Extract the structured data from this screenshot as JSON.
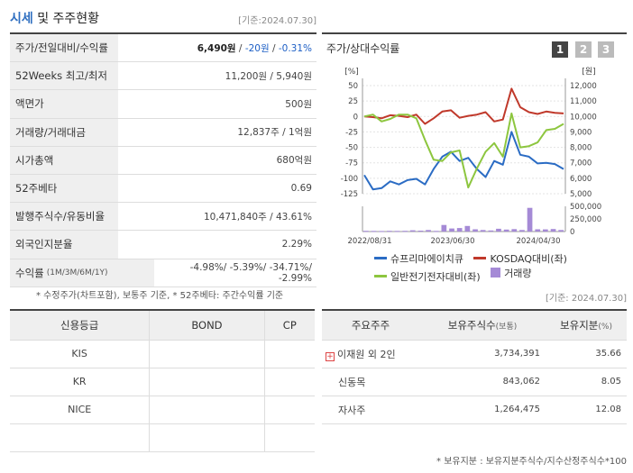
{
  "header": {
    "title_accent": "시세",
    "title_rest": " 및 주주현황",
    "ref_date": "[기준:2024.07.30]"
  },
  "price_rows": [
    {
      "label": "주가/전일대비/수익률",
      "value_main": "6,490원",
      "value_sep1": " / ",
      "value_change": "-20원",
      "value_sep2": " / ",
      "value_pct": "-0.31%"
    },
    {
      "label": "52Weeks 최고/최저",
      "value": "11,200원 / 5,940원"
    },
    {
      "label": "액면가",
      "value": "500원"
    },
    {
      "label": "거래량/거래대금",
      "value": "12,837주 / 1억원"
    },
    {
      "label": "시가총액",
      "value": "680억원"
    },
    {
      "label": "52주베타",
      "value": "0.69"
    },
    {
      "label": "발행주식수/유동비율",
      "value": "10,471,840주 / 43.61%"
    },
    {
      "label": "외국인지분율",
      "value": "2.29%"
    },
    {
      "label": "수익률",
      "label_small": "(1M/3M/6M/1Y)",
      "value": "-4.98%/ -5.39%/ -34.71%/ -2.99%"
    }
  ],
  "price_note": "* 수정주가(차트포함), 보통주 기준, * 52주베타: 주간수익률 기준",
  "chart_panel": {
    "title": "주가/상대수익률",
    "pages": [
      "1",
      "2",
      "3"
    ]
  },
  "chart_data": {
    "type": "line",
    "y_left_unit": "[%]",
    "y_right_unit": "[원]",
    "y_left_ticks": [
      "50",
      "25",
      "0",
      "-25",
      "-50",
      "-75",
      "-100",
      "-125"
    ],
    "y_right_ticks": [
      "12,000",
      "11,000",
      "10,000",
      "9,000",
      "8,000",
      "7,000",
      "6,000",
      "5,000"
    ],
    "vol_ticks": [
      "500,000",
      "250,000",
      "0"
    ],
    "x_labels": [
      "2022/08/31",
      "2023/06/30",
      "2024/04/30"
    ],
    "ylim_left": [
      -125,
      50
    ],
    "ylim_right": [
      5000,
      12000
    ],
    "series": [
      {
        "name": "슈프리마에이치큐",
        "color": "#2b6cc4",
        "values": [
          -95,
          -118,
          -116,
          -105,
          -110,
          -103,
          -101,
          -110,
          -85,
          -65,
          -57,
          -72,
          -67,
          -85,
          -98,
          -72,
          -78,
          -25,
          -62,
          -65,
          -76,
          -75,
          -77,
          -85
        ]
      },
      {
        "name": "KOSDAQ대비(좌)",
        "color": "#c0392b",
        "values": [
          0,
          -1,
          -3,
          2,
          1,
          -1,
          3,
          -12,
          -3,
          8,
          10,
          -2,
          1,
          3,
          7,
          -8,
          -5,
          45,
          15,
          7,
          4,
          8,
          6,
          5
        ]
      },
      {
        "name": "일반전기전자대비(좌)",
        "color": "#8dc63f",
        "values": [
          0,
          3,
          -8,
          -4,
          3,
          3,
          -3,
          -38,
          -70,
          -72,
          -58,
          -55,
          -115,
          -84,
          -57,
          -43,
          -65,
          5,
          -50,
          -48,
          -42,
          -22,
          -20,
          -12
        ]
      }
    ],
    "volume_series": {
      "name": "거래량",
      "color": "#a58ad6",
      "values": [
        15000,
        12000,
        10000,
        15000,
        12000,
        14000,
        25000,
        18000,
        30000,
        12000,
        130000,
        60000,
        70000,
        110000,
        45000,
        30000,
        22000,
        55000,
        40000,
        48000,
        30000,
        470000,
        45000,
        42000,
        50000,
        30000
      ]
    }
  },
  "chart_ref": "[기준: 2024.07.30]",
  "credit": {
    "headers": [
      "신용등급",
      "BOND",
      "CP"
    ],
    "rows": [
      [
        "KIS",
        "",
        ""
      ],
      [
        "KR",
        "",
        ""
      ],
      [
        "NICE",
        "",
        ""
      ],
      [
        "",
        "",
        ""
      ]
    ]
  },
  "holders": {
    "headers": [
      "주요주주",
      "보유주식수(보통)",
      "보유지분(%)"
    ],
    "header_main": [
      "주요주주",
      "보유주식수",
      "보유지분"
    ],
    "header_small": [
      "",
      "(보통)",
      "(%)"
    ],
    "rows": [
      {
        "name": "이재원 외 2인",
        "shares": "3,734,391",
        "pct": "35.66",
        "expand": "+"
      },
      {
        "name": "신동목",
        "shares": "843,062",
        "pct": "8.05"
      },
      {
        "name": "자사주",
        "shares": "1,264,475",
        "pct": "12.08"
      }
    ],
    "note": "* 보유지분 : 보유지분주식수/지수산정주식수*100"
  }
}
